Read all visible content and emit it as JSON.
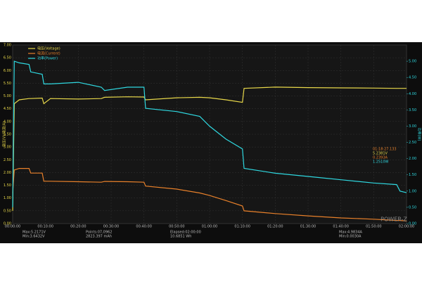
{
  "chart_data": {
    "type": "line",
    "y_label": "电压(V)/电流(A)",
    "y2_label": "功率(W)",
    "x": [
      0,
      0.5,
      2,
      5,
      5.5,
      9,
      9.5,
      11.5,
      20,
      27,
      28,
      35,
      40,
      40.5,
      50,
      57,
      60,
      65,
      70,
      70.5,
      80,
      90,
      100,
      110,
      117,
      118,
      120
    ],
    "series": [
      {
        "name": "电压(Voltage)",
        "color": "#e8d84a",
        "values": [
          0.5,
          4.7,
          4.85,
          4.9,
          4.9,
          4.92,
          4.7,
          4.9,
          4.88,
          4.9,
          4.95,
          4.97,
          4.96,
          4.85,
          4.93,
          4.95,
          4.93,
          4.85,
          4.75,
          5.3,
          5.35,
          5.33,
          5.32,
          5.31,
          5.3,
          5.3,
          5.3
        ]
      },
      {
        "name": "电流(Current)",
        "color": "#e8802a",
        "values": [
          1.2,
          2.1,
          2.16,
          2.16,
          1.98,
          1.98,
          1.66,
          1.66,
          1.64,
          1.62,
          1.65,
          1.64,
          1.62,
          1.47,
          1.35,
          1.2,
          1.1,
          0.9,
          0.69,
          0.5,
          0.39,
          0.3,
          0.22,
          0.17,
          0.12,
          0.12,
          0.1
        ]
      },
      {
        "name": "功率(Power)",
        "color": "#2fd8e0",
        "axis": "y2",
        "values": [
          0.5,
          5.0,
          4.95,
          4.9,
          4.67,
          4.6,
          4.3,
          4.3,
          4.35,
          4.2,
          4.1,
          4.2,
          4.2,
          3.55,
          3.45,
          3.3,
          3.0,
          2.6,
          2.3,
          1.7,
          1.55,
          1.45,
          1.35,
          1.25,
          1.2,
          1.0,
          0.95
        ]
      }
    ],
    "xlim": [
      0,
      120
    ],
    "xticks": [
      {
        "value": 0,
        "label": "00:00:00"
      },
      {
        "value": 10,
        "label": "00:10:00"
      },
      {
        "value": 20,
        "label": "00:20:00"
      },
      {
        "value": 30,
        "label": "00:30:00"
      },
      {
        "value": 40,
        "label": "00:40:00"
      },
      {
        "value": 50,
        "label": "00:50:00"
      },
      {
        "value": 60,
        "label": "01:00:00"
      },
      {
        "value": 70,
        "label": "01:10:00"
      },
      {
        "value": 80,
        "label": "01:20:00"
      },
      {
        "value": 90,
        "label": "01:30:00"
      },
      {
        "value": 100,
        "label": "01:40:00"
      },
      {
        "value": 110,
        "label": "01:50:00"
      },
      {
        "value": 120,
        "label": "02:00:00"
      }
    ],
    "ylim": [
      0,
      7
    ],
    "yticks": [
      {
        "value": 0,
        "label": "0.00"
      },
      {
        "value": 0.5,
        "label": "0.50"
      },
      {
        "value": 1,
        "label": "1.00"
      },
      {
        "value": 1.5,
        "label": "1.50"
      },
      {
        "value": 2,
        "label": "2.00"
      },
      {
        "value": 2.5,
        "label": "2.50"
      },
      {
        "value": 3,
        "label": "3.00"
      },
      {
        "value": 3.5,
        "label": "3.50"
      },
      {
        "value": 4,
        "label": "4.00"
      },
      {
        "value": 4.5,
        "label": "4.50"
      },
      {
        "value": 5,
        "label": "5.00"
      },
      {
        "value": 5.5,
        "label": "5.50"
      },
      {
        "value": 6,
        "label": "6.00"
      },
      {
        "value": 6.5,
        "label": "6.50"
      },
      {
        "value": 7,
        "label": "7.00"
      }
    ],
    "y2lim": [
      0,
      5.5
    ],
    "y2ticks": [
      {
        "value": 0,
        "label": "0.00"
      },
      {
        "value": 0.5,
        "label": "0.50"
      },
      {
        "value": 1,
        "label": "1.00"
      },
      {
        "value": 1.5,
        "label": "1.50"
      },
      {
        "value": 2,
        "label": "2.00"
      },
      {
        "value": 2.5,
        "label": "2.50"
      },
      {
        "value": 3,
        "label": "3.00"
      },
      {
        "value": 3.5,
        "label": "3.50"
      },
      {
        "value": 4,
        "label": "4.00"
      },
      {
        "value": 4.5,
        "label": "4.50"
      },
      {
        "value": 5,
        "label": "5.00"
      }
    ],
    "grid": true,
    "readout": [
      "01:18:27.133",
      "5.2381V",
      "0.2393A",
      "1.2510W"
    ],
    "stats": [
      "Max:5.2171V",
      "Min:3.6432V",
      "Points:07,0962",
      "2823.397 mAh",
      "Elapsed:02:00:00",
      "10.6851 Wh",
      "Max:4.9834A",
      "Min:0.0030A"
    ],
    "brand": "POWER-Z"
  }
}
